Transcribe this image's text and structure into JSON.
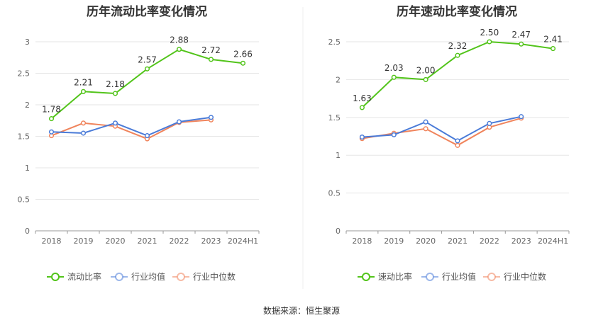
{
  "source_text": "数据来源：恒生聚源",
  "chart_data": [
    {
      "type": "line",
      "title": "历年流动比率变化情况",
      "categories": [
        "2018",
        "2019",
        "2020",
        "2021",
        "2022",
        "2023",
        "2024H1"
      ],
      "ylim": [
        0,
        3
      ],
      "yticks": [
        "0",
        "0.5",
        "1",
        "1.5",
        "2",
        "2.5",
        "3"
      ],
      "grid": true,
      "legend_position": "bottom",
      "series": [
        {
          "name": "流动比率",
          "color": "#52c41a",
          "values": [
            1.78,
            2.21,
            2.18,
            2.57,
            2.88,
            2.72,
            2.66
          ],
          "labels": [
            "1.78",
            "2.21",
            "2.18",
            "2.57",
            "2.88",
            "2.72",
            "2.66"
          ]
        },
        {
          "name": "行业均值",
          "color": "#4a7bd8",
          "values": [
            1.57,
            1.55,
            1.71,
            1.51,
            1.73,
            1.8,
            null
          ]
        },
        {
          "name": "行业中位数",
          "color": "#f0845c",
          "values": [
            1.51,
            1.71,
            1.66,
            1.46,
            1.72,
            1.76,
            null
          ]
        }
      ]
    },
    {
      "type": "line",
      "title": "历年速动比率变化情况",
      "categories": [
        "2018",
        "2019",
        "2020",
        "2021",
        "2022",
        "2023",
        "2024H1"
      ],
      "ylim": [
        0,
        2.5
      ],
      "yticks": [
        "0",
        "0.5",
        "1",
        "1.5",
        "2",
        "2.5"
      ],
      "grid": true,
      "legend_position": "bottom",
      "series": [
        {
          "name": "速动比率",
          "color": "#52c41a",
          "values": [
            1.63,
            2.03,
            2.0,
            2.32,
            2.5,
            2.47,
            2.41
          ],
          "labels": [
            "1.63",
            "2.03",
            "2.00",
            "2.32",
            "2.50",
            "2.47",
            "2.41"
          ]
        },
        {
          "name": "行业均值",
          "color": "#4a7bd8",
          "values": [
            1.24,
            1.27,
            1.44,
            1.19,
            1.42,
            1.51,
            null
          ]
        },
        {
          "name": "行业中位数",
          "color": "#f0845c",
          "values": [
            1.22,
            1.29,
            1.35,
            1.13,
            1.37,
            1.49,
            null
          ]
        }
      ]
    }
  ]
}
